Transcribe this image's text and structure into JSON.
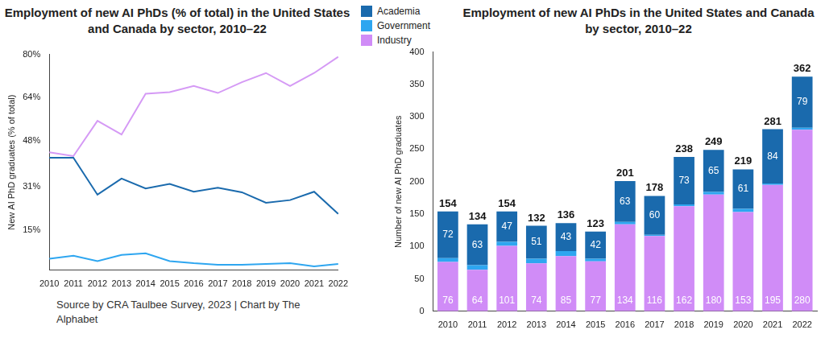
{
  "chart_data": [
    {
      "type": "line",
      "title": "Employment of new AI PhDs (% of total) in the United States and Canada by sector, 2010–22",
      "y_label": "New AI PhD graduates (% of total)",
      "source": "Source by CRA Taulbee Survey, 2023 | Chart by The Alphabet",
      "categories": [
        "2010",
        "2011",
        "2012",
        "2013",
        "2014",
        "2015",
        "2016",
        "2017",
        "2018",
        "2019",
        "2020",
        "2021",
        "2022"
      ],
      "series": [
        {
          "name": "Academia",
          "color": "#1a6aad",
          "values": [
            41.7,
            41.7,
            28.0,
            34.0,
            30.3,
            32.0,
            29.1,
            30.6,
            28.9,
            25.0,
            26.0,
            29.1,
            20.9
          ]
        },
        {
          "name": "Government",
          "color": "#2ea6f0",
          "values": [
            4.3,
            5.4,
            3.4,
            5.7,
            6.3,
            3.4,
            2.6,
            2.0,
            2.0,
            2.3,
            2.6,
            1.4,
            2.3
          ]
        },
        {
          "name": "Industry",
          "color": "#d59af5",
          "values": [
            43.7,
            42.3,
            55.4,
            50.3,
            65.4,
            66.0,
            68.3,
            65.7,
            69.7,
            73.1,
            68.3,
            73.1,
            79.1
          ]
        }
      ],
      "ylim": [
        0,
        80
      ],
      "yticks": [
        {
          "value": 15,
          "label": "15%"
        },
        {
          "value": 31,
          "label": "31%"
        },
        {
          "value": 48,
          "label": "48%"
        },
        {
          "value": 64,
          "label": "64%"
        },
        {
          "value": 80,
          "label": "80%"
        }
      ],
      "grid": false,
      "marker": "none",
      "line_style": "solid"
    },
    {
      "type": "bar",
      "stacked": true,
      "title": "Employment of new AI PhDs in the United States and Canada by sector, 2010–22",
      "y_label": "Number of new AI PhD graduates",
      "categories": [
        "2010",
        "2011",
        "2012",
        "2013",
        "2014",
        "2015",
        "2016",
        "2017",
        "2018",
        "2019",
        "2020",
        "2021",
        "2022"
      ],
      "series": [
        {
          "name": "Academia",
          "color": "#1a6aad",
          "data_labels": true,
          "values": [
            72,
            63,
            47,
            51,
            43,
            42,
            63,
            60,
            73,
            65,
            61,
            84,
            79
          ]
        },
        {
          "name": "Government",
          "color": "#2ea6f0",
          "data_labels": false,
          "values": [
            6,
            7,
            6,
            7,
            8,
            4,
            4,
            2,
            3,
            4,
            5,
            2,
            3
          ]
        },
        {
          "name": "Industry",
          "color": "#d08cf7",
          "data_labels": true,
          "values": [
            76,
            64,
            101,
            74,
            85,
            77,
            134,
            116,
            162,
            180,
            153,
            195,
            280
          ]
        }
      ],
      "totals": [
        154,
        134,
        154,
        132,
        136,
        123,
        201,
        178,
        238,
        249,
        219,
        281,
        362
      ],
      "ylim": [
        0,
        400
      ],
      "yticks": [
        0,
        50,
        100,
        150,
        200,
        250,
        300,
        350,
        400
      ],
      "grid": false,
      "legend": "top",
      "data_labels": true
    }
  ]
}
